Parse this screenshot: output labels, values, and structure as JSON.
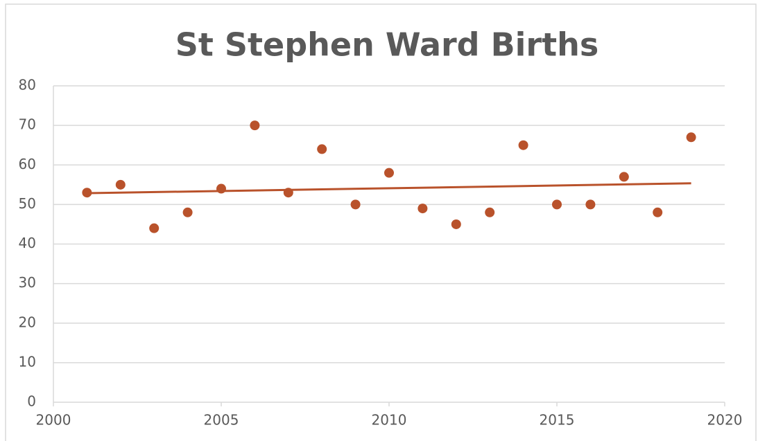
{
  "chart_data": {
    "type": "scatter",
    "title": "St Stephen Ward Births",
    "x": [
      2001,
      2002,
      2003,
      2004,
      2005,
      2006,
      2007,
      2008,
      2009,
      2010,
      2011,
      2012,
      2013,
      2014,
      2015,
      2016,
      2017,
      2018,
      2019
    ],
    "values": [
      53,
      55,
      44,
      48,
      54,
      70,
      53,
      64,
      50,
      58,
      49,
      45,
      48,
      65,
      50,
      50,
      57,
      48,
      67
    ],
    "color": "#b9522b",
    "xlim": [
      2000,
      2020
    ],
    "xticks": [
      2000,
      2005,
      2010,
      2015,
      2020
    ],
    "ylim": [
      0,
      80
    ],
    "yticks": [
      0,
      10,
      20,
      30,
      40,
      50,
      60,
      70,
      80
    ],
    "grid": true,
    "trendline": "linear"
  }
}
